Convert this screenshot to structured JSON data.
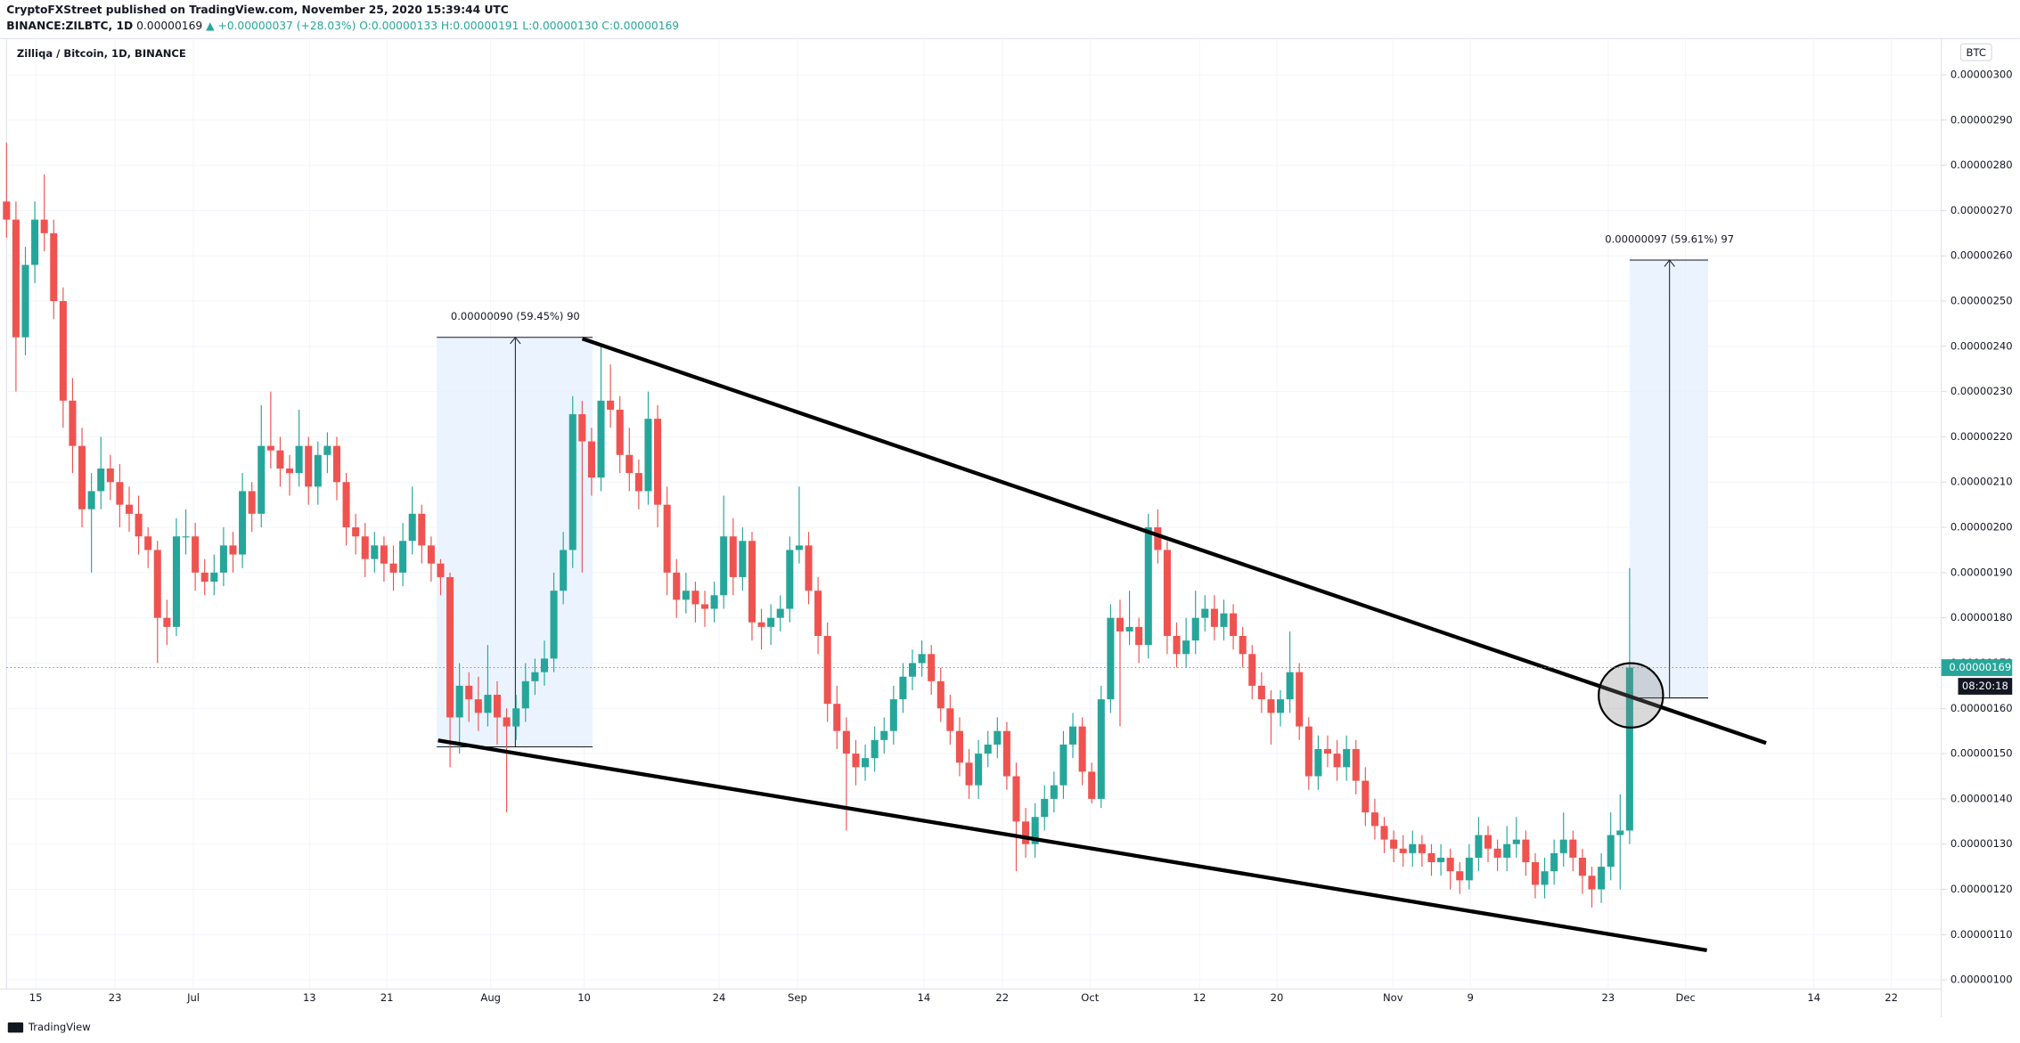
{
  "header": {
    "line1": "CryptoFXStreet published on TradingView.com, November 25, 2020 15:39:44 UTC",
    "symbol": "BINANCE:ZILBTC, 1D",
    "price": "0.00000169",
    "change": "▲ +0.00000037 (+28.03%)",
    "ohlc": "O:0.00000133 H:0.00000191 L:0.00000130 C:0.00000169"
  },
  "chart_data": {
    "type": "candlestick",
    "title": "Zilliqa / Bitcoin, 1D, BINANCE",
    "currency": "BTC",
    "up_color": "#26a69a",
    "down_color": "#ef5350",
    "price_label": "0.00000169",
    "countdown": "08:20:18",
    "annotations": [
      "0.00000090 (59.45%) 90",
      "0.00000097 (59.61%) 97"
    ],
    "ylim": [
      9.8e-07,
      3.08e-06
    ],
    "yticks": [
      {
        "value": 1e-06,
        "label": "0.00000100"
      },
      {
        "value": 1.1e-06,
        "label": "0.00000110"
      },
      {
        "value": 1.2e-06,
        "label": "0.00000120"
      },
      {
        "value": 1.3e-06,
        "label": "0.00000130"
      },
      {
        "value": 1.4e-06,
        "label": "0.00000140"
      },
      {
        "value": 1.5e-06,
        "label": "0.00000150"
      },
      {
        "value": 1.6e-06,
        "label": "0.00000160"
      },
      {
        "value": 1.7e-06,
        "label": "0.00000170"
      },
      {
        "value": 1.8e-06,
        "label": "0.00000180"
      },
      {
        "value": 1.9e-06,
        "label": "0.00000190"
      },
      {
        "value": 2e-06,
        "label": "0.00000200"
      },
      {
        "value": 2.1e-06,
        "label": "0.00000210"
      },
      {
        "value": 2.2e-06,
        "label": "0.00000220"
      },
      {
        "value": 2.3e-06,
        "label": "0.00000230"
      },
      {
        "value": 2.4e-06,
        "label": "0.00000240"
      },
      {
        "value": 2.5e-06,
        "label": "0.00000250"
      },
      {
        "value": 2.6e-06,
        "label": "0.00000260"
      },
      {
        "value": 2.7e-06,
        "label": "0.00000270"
      },
      {
        "value": 2.8e-06,
        "label": "0.00000280"
      },
      {
        "value": 2.9e-06,
        "label": "0.00000290"
      },
      {
        "value": 3e-06,
        "label": "0.00000300"
      }
    ],
    "xlim": [
      0,
      205
    ],
    "xticks": [
      {
        "value": 3.1,
        "label": "15"
      },
      {
        "value": 11.5,
        "label": "23"
      },
      {
        "value": 19.8,
        "label": "Jul"
      },
      {
        "value": 32.1,
        "label": "13"
      },
      {
        "value": 40.3,
        "label": "21"
      },
      {
        "value": 51.3,
        "label": "Aug"
      },
      {
        "value": 61.2,
        "label": "10"
      },
      {
        "value": 75.5,
        "label": "24"
      },
      {
        "value": 83.8,
        "label": "Sep"
      },
      {
        "value": 97.2,
        "label": "14"
      },
      {
        "value": 105.5,
        "label": "22"
      },
      {
        "value": 114.8,
        "label": "Oct"
      },
      {
        "value": 126.4,
        "label": "12"
      },
      {
        "value": 134.6,
        "label": "20"
      },
      {
        "value": 146.9,
        "label": "Nov"
      },
      {
        "value": 155.1,
        "label": "9"
      },
      {
        "value": 169.7,
        "label": "23"
      },
      {
        "value": 177.9,
        "label": "Dec"
      },
      {
        "value": 191.5,
        "label": "14"
      },
      {
        "value": 199.7,
        "label": "22"
      }
    ],
    "ohlc": [
      [
        2.72e-06,
        2.85e-06,
        2.64e-06,
        2.68e-06
      ],
      [
        2.68e-06,
        2.72e-06,
        2.3e-06,
        2.42e-06
      ],
      [
        2.42e-06,
        2.62e-06,
        2.38e-06,
        2.58e-06
      ],
      [
        2.58e-06,
        2.72e-06,
        2.54e-06,
        2.68e-06
      ],
      [
        2.68e-06,
        2.78e-06,
        2.61e-06,
        2.65e-06
      ],
      [
        2.65e-06,
        2.68e-06,
        2.46e-06,
        2.5e-06
      ],
      [
        2.5e-06,
        2.53e-06,
        2.22e-06,
        2.28e-06
      ],
      [
        2.28e-06,
        2.33e-06,
        2.12e-06,
        2.18e-06
      ],
      [
        2.18e-06,
        2.22e-06,
        2e-06,
        2.04e-06
      ],
      [
        2.04e-06,
        2.12e-06,
        1.9e-06,
        2.08e-06
      ],
      [
        2.08e-06,
        2.2e-06,
        2.04e-06,
        2.13e-06
      ],
      [
        2.13e-06,
        2.16e-06,
        2.06e-06,
        2.1e-06
      ],
      [
        2.1e-06,
        2.14e-06,
        2e-06,
        2.05e-06
      ],
      [
        2.05e-06,
        2.09e-06,
        1.99e-06,
        2.03e-06
      ],
      [
        2.03e-06,
        2.07e-06,
        1.94e-06,
        1.98e-06
      ],
      [
        1.98e-06,
        2e-06,
        1.91e-06,
        1.95e-06
      ],
      [
        1.95e-06,
        1.97e-06,
        1.7e-06,
        1.8e-06
      ],
      [
        1.8e-06,
        1.84e-06,
        1.74e-06,
        1.78e-06
      ],
      [
        1.78e-06,
        2.02e-06,
        1.76e-06,
        1.98e-06
      ],
      [
        1.98e-06,
        2.04e-06,
        1.94e-06,
        1.98e-06
      ],
      [
        1.98e-06,
        2.01e-06,
        1.86e-06,
        1.9e-06
      ],
      [
        1.9e-06,
        1.93e-06,
        1.85e-06,
        1.88e-06
      ],
      [
        1.88e-06,
        1.94e-06,
        1.85e-06,
        1.9e-06
      ],
      [
        1.9e-06,
        2e-06,
        1.87e-06,
        1.96e-06
      ],
      [
        1.96e-06,
        1.99e-06,
        1.9e-06,
        1.94e-06
      ],
      [
        1.94e-06,
        2.12e-06,
        1.91e-06,
        2.08e-06
      ],
      [
        2.08e-06,
        2.1e-06,
        1.99e-06,
        2.03e-06
      ],
      [
        2.03e-06,
        2.27e-06,
        2e-06,
        2.18e-06
      ],
      [
        2.18e-06,
        2.3e-06,
        2.13e-06,
        2.17e-06
      ],
      [
        2.17e-06,
        2.2e-06,
        2.09e-06,
        2.13e-06
      ],
      [
        2.13e-06,
        2.16e-06,
        2.07e-06,
        2.12e-06
      ],
      [
        2.12e-06,
        2.26e-06,
        2.09e-06,
        2.18e-06
      ],
      [
        2.18e-06,
        2.2e-06,
        2.05e-06,
        2.09e-06
      ],
      [
        2.09e-06,
        2.19e-06,
        2.05e-06,
        2.16e-06
      ],
      [
        2.16e-06,
        2.21e-06,
        2.12e-06,
        2.18e-06
      ],
      [
        2.18e-06,
        2.2e-06,
        2.06e-06,
        2.1e-06
      ],
      [
        2.1e-06,
        2.12e-06,
        1.96e-06,
        2e-06
      ],
      [
        2e-06,
        2.03e-06,
        1.94e-06,
        1.98e-06
      ],
      [
        1.98e-06,
        2.01e-06,
        1.89e-06,
        1.93e-06
      ],
      [
        1.93e-06,
        1.99e-06,
        1.9e-06,
        1.96e-06
      ],
      [
        1.96e-06,
        1.98e-06,
        1.88e-06,
        1.92e-06
      ],
      [
        1.92e-06,
        1.96e-06,
        1.86e-06,
        1.9e-06
      ],
      [
        1.9e-06,
        2.01e-06,
        1.87e-06,
        1.97e-06
      ],
      [
        1.97e-06,
        2.09e-06,
        1.94e-06,
        2.03e-06
      ],
      [
        2.03e-06,
        2.05e-06,
        1.92e-06,
        1.96e-06
      ],
      [
        1.96e-06,
        1.98e-06,
        1.88e-06,
        1.92e-06
      ],
      [
        1.92e-06,
        1.93e-06,
        1.85e-06,
        1.89e-06
      ],
      [
        1.89e-06,
        1.9e-06,
        1.47e-06,
        1.58e-06
      ],
      [
        1.58e-06,
        1.7e-06,
        1.5e-06,
        1.65e-06
      ],
      [
        1.65e-06,
        1.68e-06,
        1.57e-06,
        1.62e-06
      ],
      [
        1.62e-06,
        1.67e-06,
        1.55e-06,
        1.59e-06
      ],
      [
        1.59e-06,
        1.74e-06,
        1.56e-06,
        1.63e-06
      ],
      [
        1.63e-06,
        1.66e-06,
        1.52e-06,
        1.58e-06
      ],
      [
        1.58e-06,
        1.6e-06,
        1.37e-06,
        1.56e-06
      ],
      [
        1.56e-06,
        1.63e-06,
        1.53e-06,
        1.6e-06
      ],
      [
        1.6e-06,
        1.7e-06,
        1.57e-06,
        1.66e-06
      ],
      [
        1.66e-06,
        1.71e-06,
        1.63e-06,
        1.68e-06
      ],
      [
        1.68e-06,
        1.75e-06,
        1.65e-06,
        1.71e-06
      ],
      [
        1.71e-06,
        1.9e-06,
        1.68e-06,
        1.86e-06
      ],
      [
        1.86e-06,
        1.99e-06,
        1.83e-06,
        1.95e-06
      ],
      [
        1.95e-06,
        2.29e-06,
        1.91e-06,
        2.25e-06
      ],
      [
        2.25e-06,
        2.28e-06,
        1.9e-06,
        2.19e-06
      ],
      [
        2.19e-06,
        2.22e-06,
        2.07e-06,
        2.11e-06
      ],
      [
        2.11e-06,
        2.4e-06,
        2.08e-06,
        2.28e-06
      ],
      [
        2.28e-06,
        2.36e-06,
        2.22e-06,
        2.26e-06
      ],
      [
        2.26e-06,
        2.29e-06,
        2.12e-06,
        2.16e-06
      ],
      [
        2.16e-06,
        2.22e-06,
        2.08e-06,
        2.12e-06
      ],
      [
        2.12e-06,
        2.15e-06,
        2.04e-06,
        2.08e-06
      ],
      [
        2.08e-06,
        2.3e-06,
        2.05e-06,
        2.24e-06
      ],
      [
        2.24e-06,
        2.27e-06,
        2e-06,
        2.05e-06
      ],
      [
        2.05e-06,
        2.09e-06,
        1.85e-06,
        1.9e-06
      ],
      [
        1.9e-06,
        1.93e-06,
        1.8e-06,
        1.84e-06
      ],
      [
        1.84e-06,
        1.9e-06,
        1.81e-06,
        1.86e-06
      ],
      [
        1.86e-06,
        1.88e-06,
        1.79e-06,
        1.83e-06
      ],
      [
        1.83e-06,
        1.86e-06,
        1.78e-06,
        1.82e-06
      ],
      [
        1.82e-06,
        1.88e-06,
        1.79e-06,
        1.85e-06
      ],
      [
        1.85e-06,
        2.07e-06,
        1.82e-06,
        1.98e-06
      ],
      [
        1.98e-06,
        2.02e-06,
        1.85e-06,
        1.89e-06
      ],
      [
        1.89e-06,
        2e-06,
        1.86e-06,
        1.97e-06
      ],
      [
        1.97e-06,
        1.99e-06,
        1.75e-06,
        1.79e-06
      ],
      [
        1.79e-06,
        1.82e-06,
        1.73e-06,
        1.78e-06
      ],
      [
        1.78e-06,
        1.83e-06,
        1.74e-06,
        1.8e-06
      ],
      [
        1.8e-06,
        1.85e-06,
        1.77e-06,
        1.82e-06
      ],
      [
        1.82e-06,
        1.98e-06,
        1.79e-06,
        1.95e-06
      ],
      [
        1.95e-06,
        2.09e-06,
        1.92e-06,
        1.96e-06
      ],
      [
        1.96e-06,
        1.99e-06,
        1.83e-06,
        1.86e-06
      ],
      [
        1.86e-06,
        1.89e-06,
        1.72e-06,
        1.76e-06
      ],
      [
        1.76e-06,
        1.79e-06,
        1.57e-06,
        1.61e-06
      ],
      [
        1.61e-06,
        1.65e-06,
        1.51e-06,
        1.55e-06
      ],
      [
        1.55e-06,
        1.58e-06,
        1.33e-06,
        1.5e-06
      ],
      [
        1.5e-06,
        1.53e-06,
        1.43e-06,
        1.47e-06
      ],
      [
        1.47e-06,
        1.52e-06,
        1.44e-06,
        1.49e-06
      ],
      [
        1.49e-06,
        1.56e-06,
        1.46e-06,
        1.53e-06
      ],
      [
        1.53e-06,
        1.58e-06,
        1.5e-06,
        1.55e-06
      ],
      [
        1.55e-06,
        1.65e-06,
        1.52e-06,
        1.62e-06
      ],
      [
        1.62e-06,
        1.7e-06,
        1.59e-06,
        1.67e-06
      ],
      [
        1.67e-06,
        1.73e-06,
        1.64e-06,
        1.7e-06
      ],
      [
        1.7e-06,
        1.75e-06,
        1.67e-06,
        1.72e-06
      ],
      [
        1.72e-06,
        1.74e-06,
        1.63e-06,
        1.66e-06
      ],
      [
        1.66e-06,
        1.69e-06,
        1.57e-06,
        1.6e-06
      ],
      [
        1.6e-06,
        1.63e-06,
        1.52e-06,
        1.55e-06
      ],
      [
        1.55e-06,
        1.58e-06,
        1.45e-06,
        1.48e-06
      ],
      [
        1.48e-06,
        1.51e-06,
        1.4e-06,
        1.43e-06
      ],
      [
        1.43e-06,
        1.53e-06,
        1.4e-06,
        1.5e-06
      ],
      [
        1.5e-06,
        1.55e-06,
        1.47e-06,
        1.52e-06
      ],
      [
        1.52e-06,
        1.58e-06,
        1.49e-06,
        1.55e-06
      ],
      [
        1.55e-06,
        1.57e-06,
        1.42e-06,
        1.45e-06
      ],
      [
        1.45e-06,
        1.48e-06,
        1.24e-06,
        1.35e-06
      ],
      [
        1.35e-06,
        1.38e-06,
        1.27e-06,
        1.3e-06
      ],
      [
        1.3e-06,
        1.39e-06,
        1.27e-06,
        1.36e-06
      ],
      [
        1.36e-06,
        1.43e-06,
        1.33e-06,
        1.4e-06
      ],
      [
        1.4e-06,
        1.46e-06,
        1.37e-06,
        1.43e-06
      ],
      [
        1.43e-06,
        1.55e-06,
        1.4e-06,
        1.52e-06
      ],
      [
        1.52e-06,
        1.59e-06,
        1.49e-06,
        1.56e-06
      ],
      [
        1.56e-06,
        1.58e-06,
        1.43e-06,
        1.46e-06
      ],
      [
        1.46e-06,
        1.48e-06,
        1.39e-06,
        1.4e-06
      ],
      [
        1.4e-06,
        1.65e-06,
        1.38e-06,
        1.62e-06
      ],
      [
        1.62e-06,
        1.83e-06,
        1.59e-06,
        1.8e-06
      ],
      [
        1.8e-06,
        1.84e-06,
        1.56e-06,
        1.77e-06
      ],
      [
        1.77e-06,
        1.86e-06,
        1.74e-06,
        1.78e-06
      ],
      [
        1.78e-06,
        1.8e-06,
        1.7e-06,
        1.74e-06
      ],
      [
        1.74e-06,
        2.03e-06,
        1.71e-06,
        2e-06
      ],
      [
        2e-06,
        2.04e-06,
        1.92e-06,
        1.95e-06
      ],
      [
        1.95e-06,
        1.97e-06,
        1.72e-06,
        1.76e-06
      ],
      [
        1.76e-06,
        1.79e-06,
        1.69e-06,
        1.72e-06
      ],
      [
        1.72e-06,
        1.8e-06,
        1.69e-06,
        1.75e-06
      ],
      [
        1.75e-06,
        1.86e-06,
        1.72e-06,
        1.8e-06
      ],
      [
        1.8e-06,
        1.85e-06,
        1.77e-06,
        1.82e-06
      ],
      [
        1.82e-06,
        1.85e-06,
        1.75e-06,
        1.78e-06
      ],
      [
        1.78e-06,
        1.84e-06,
        1.75e-06,
        1.81e-06
      ],
      [
        1.81e-06,
        1.83e-06,
        1.73e-06,
        1.76e-06
      ],
      [
        1.76e-06,
        1.78e-06,
        1.69e-06,
        1.72e-06
      ],
      [
        1.72e-06,
        1.74e-06,
        1.62e-06,
        1.65e-06
      ],
      [
        1.65e-06,
        1.68e-06,
        1.59e-06,
        1.62e-06
      ],
      [
        1.62e-06,
        1.64e-06,
        1.52e-06,
        1.59e-06
      ],
      [
        1.59e-06,
        1.64e-06,
        1.56e-06,
        1.62e-06
      ],
      [
        1.62e-06,
        1.77e-06,
        1.59e-06,
        1.68e-06
      ],
      [
        1.68e-06,
        1.7e-06,
        1.53e-06,
        1.56e-06
      ],
      [
        1.56e-06,
        1.58e-06,
        1.42e-06,
        1.45e-06
      ],
      [
        1.45e-06,
        1.54e-06,
        1.42e-06,
        1.51e-06
      ],
      [
        1.51e-06,
        1.54e-06,
        1.47e-06,
        1.5e-06
      ],
      [
        1.5e-06,
        1.53e-06,
        1.44e-06,
        1.47e-06
      ],
      [
        1.47e-06,
        1.54e-06,
        1.44e-06,
        1.51e-06
      ],
      [
        1.51e-06,
        1.53e-06,
        1.41e-06,
        1.44e-06
      ],
      [
        1.44e-06,
        1.47e-06,
        1.34e-06,
        1.37e-06
      ],
      [
        1.37e-06,
        1.4e-06,
        1.31e-06,
        1.34e-06
      ],
      [
        1.34e-06,
        1.36e-06,
        1.28e-06,
        1.31e-06
      ],
      [
        1.31e-06,
        1.33e-06,
        1.26e-06,
        1.29e-06
      ],
      [
        1.29e-06,
        1.32e-06,
        1.25e-06,
        1.28e-06
      ],
      [
        1.28e-06,
        1.33e-06,
        1.25e-06,
        1.3e-06
      ],
      [
        1.3e-06,
        1.32e-06,
        1.25e-06,
        1.28e-06
      ],
      [
        1.28e-06,
        1.3e-06,
        1.23e-06,
        1.26e-06
      ],
      [
        1.26e-06,
        1.3e-06,
        1.23e-06,
        1.27e-06
      ],
      [
        1.27e-06,
        1.29e-06,
        1.2e-06,
        1.24e-06
      ],
      [
        1.24e-06,
        1.26e-06,
        1.19e-06,
        1.22e-06
      ],
      [
        1.22e-06,
        1.3e-06,
        1.2e-06,
        1.27e-06
      ],
      [
        1.27e-06,
        1.36e-06,
        1.24e-06,
        1.32e-06
      ],
      [
        1.32e-06,
        1.34e-06,
        1.26e-06,
        1.29e-06
      ],
      [
        1.29e-06,
        1.31e-06,
        1.24e-06,
        1.27e-06
      ],
      [
        1.27e-06,
        1.34e-06,
        1.24e-06,
        1.3e-06
      ],
      [
        1.3e-06,
        1.36e-06,
        1.27e-06,
        1.31e-06
      ],
      [
        1.31e-06,
        1.33e-06,
        1.23e-06,
        1.26e-06
      ],
      [
        1.26e-06,
        1.28e-06,
        1.18e-06,
        1.21e-06
      ],
      [
        1.21e-06,
        1.27e-06,
        1.18e-06,
        1.24e-06
      ],
      [
        1.24e-06,
        1.31e-06,
        1.21e-06,
        1.28e-06
      ],
      [
        1.28e-06,
        1.37e-06,
        1.25e-06,
        1.31e-06
      ],
      [
        1.31e-06,
        1.33e-06,
        1.24e-06,
        1.27e-06
      ],
      [
        1.27e-06,
        1.29e-06,
        1.19e-06,
        1.23e-06
      ],
      [
        1.23e-06,
        1.25e-06,
        1.16e-06,
        1.2e-06
      ],
      [
        1.2e-06,
        1.28e-06,
        1.17e-06,
        1.25e-06
      ],
      [
        1.25e-06,
        1.37e-06,
        1.22e-06,
        1.32e-06
      ],
      [
        1.32e-06,
        1.41e-06,
        1.2e-06,
        1.33e-06
      ],
      [
        1.33e-06,
        1.91e-06,
        1.3e-06,
        1.69e-06
      ]
    ]
  },
  "footer": "TradingView"
}
